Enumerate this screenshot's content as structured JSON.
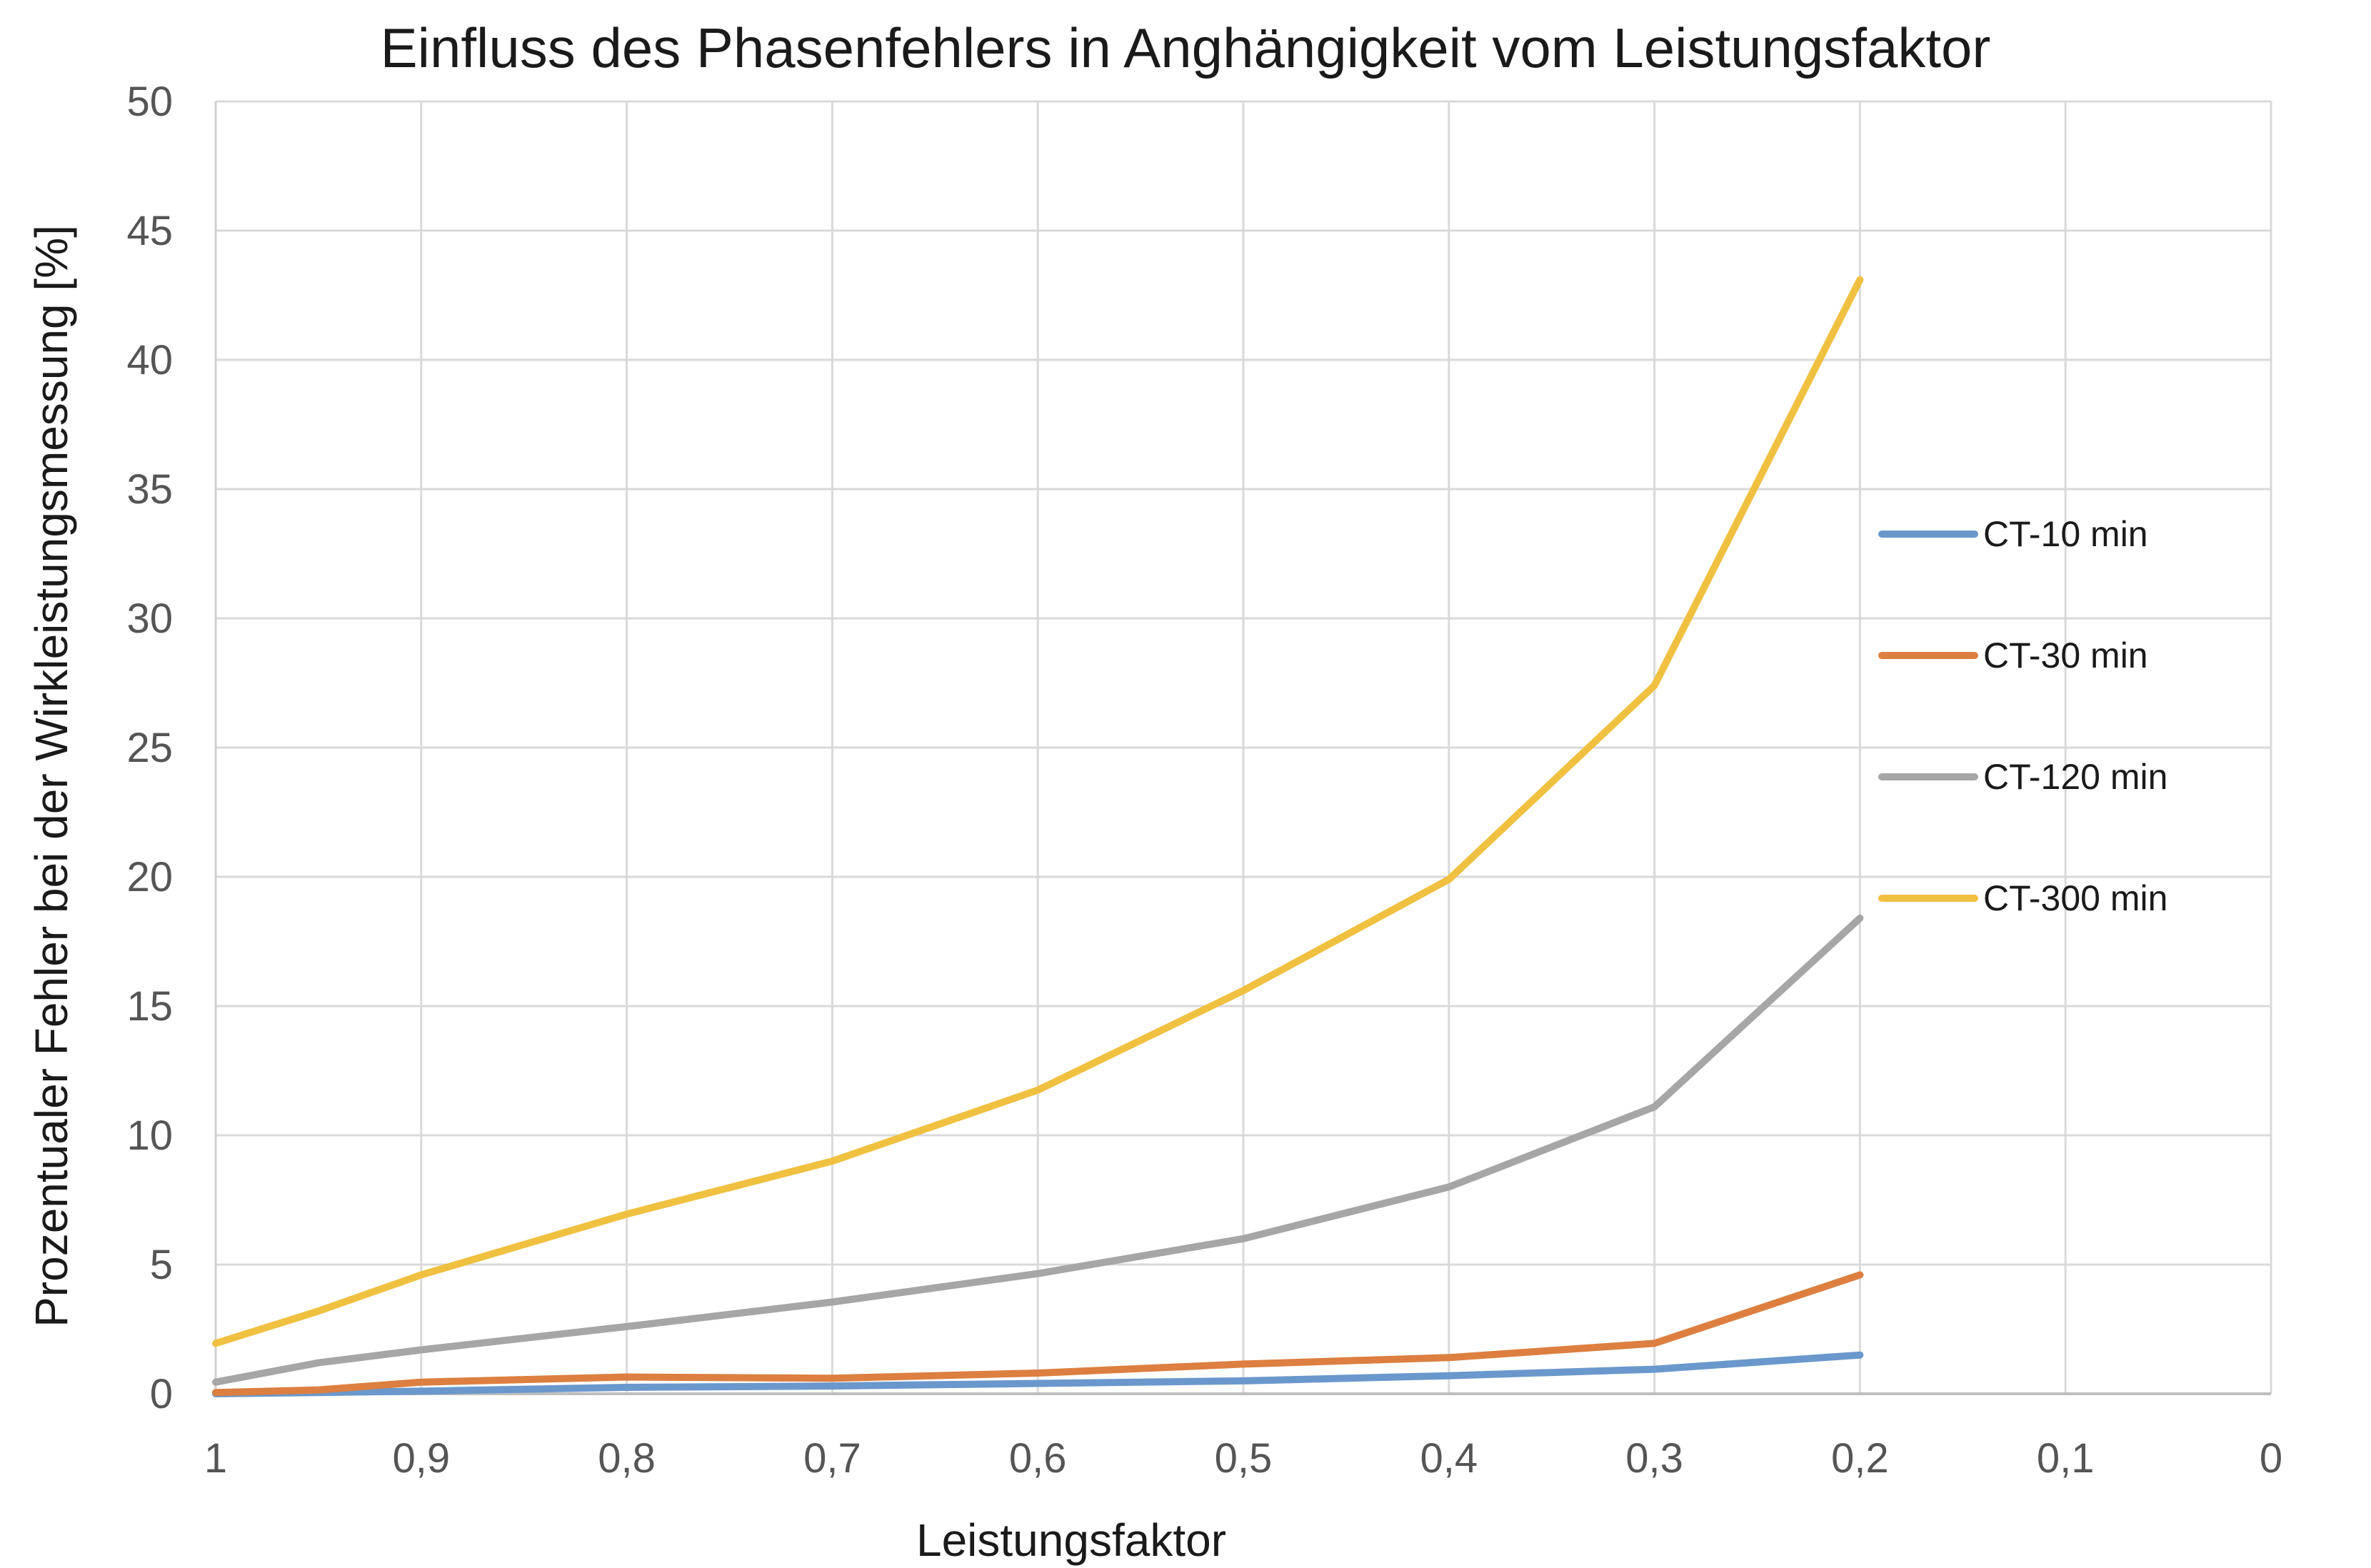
{
  "chart_data": {
    "type": "line",
    "title": "Einfluss des Phasenfehlers in Anghängigkeit vom Leistungsfaktor",
    "xlabel": "Leistungsfaktor",
    "ylabel": "Prozentualer Fehler bei der Wirkleistungsmessung [%]",
    "xlim": [
      1,
      0
    ],
    "ylim": [
      0,
      50
    ],
    "x_reversed": true,
    "x_ticks": [
      "1",
      "0,9",
      "0,8",
      "0,7",
      "0,6",
      "0,5",
      "0,4",
      "0,3",
      "0,2",
      "0,1",
      "0"
    ],
    "x_tick_values": [
      1,
      0.9,
      0.8,
      0.7,
      0.6,
      0.5,
      0.4,
      0.3,
      0.2,
      0.1,
      0
    ],
    "y_ticks": [
      "0",
      "5",
      "10",
      "15",
      "20",
      "25",
      "30",
      "35",
      "40",
      "45",
      "50"
    ],
    "y_tick_values": [
      0,
      5,
      10,
      15,
      20,
      25,
      30,
      35,
      40,
      45,
      50
    ],
    "grid": true,
    "legend_position": "right",
    "x": [
      1,
      0.95,
      0.9,
      0.8,
      0.7,
      0.6,
      0.5,
      0.4,
      0.3,
      0.2
    ],
    "series": [
      {
        "name": "CT-10 min",
        "color": "#6a98cc",
        "values": [
          0.0,
          0.05,
          0.1,
          0.25,
          0.3,
          0.4,
          0.5,
          0.7,
          0.95,
          1.5
        ]
      },
      {
        "name": "CT-30 min",
        "color": "#dc7f40",
        "values": [
          0.05,
          0.15,
          0.45,
          0.65,
          0.6,
          0.8,
          1.15,
          1.4,
          1.95,
          4.6
        ]
      },
      {
        "name": "CT-120 min",
        "color": "#a6a6a6",
        "values": [
          0.45,
          1.2,
          1.7,
          2.6,
          3.55,
          4.65,
          6.0,
          8.0,
          11.1,
          18.4
        ]
      },
      {
        "name": "CT-300 min",
        "color": "#f0c040",
        "values": [
          1.95,
          3.2,
          4.6,
          6.95,
          9.0,
          11.75,
          15.6,
          19.9,
          27.4,
          43.1
        ]
      }
    ]
  }
}
